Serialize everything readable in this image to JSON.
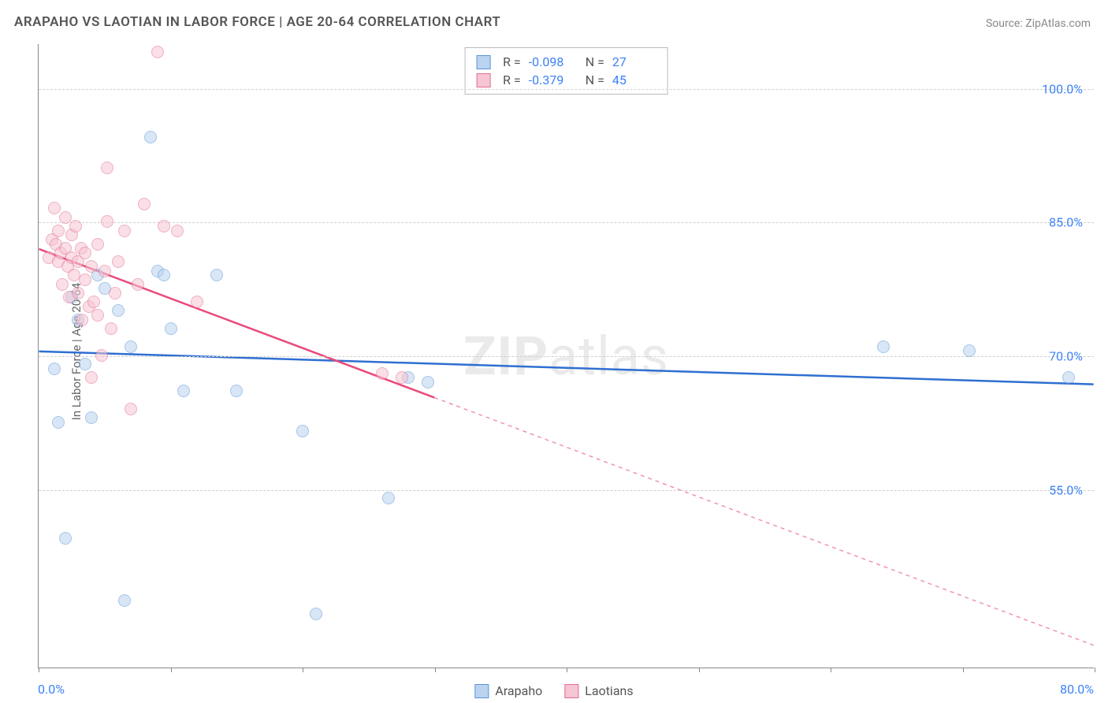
{
  "title": "ARAPAHO VS LAOTIAN IN LABOR FORCE | AGE 20-64 CORRELATION CHART",
  "source_label": "Source: ZipAtlas.com",
  "ylabel": "In Labor Force | Age 20-64",
  "watermark_bold": "ZIP",
  "watermark_rest": "atlas",
  "chart": {
    "type": "scatter",
    "xlim": [
      0,
      80
    ],
    "ylim": [
      35,
      105
    ],
    "x_tick_positions": [
      0,
      10,
      20,
      30,
      40,
      50,
      60,
      70,
      80
    ],
    "y_ticks": [
      {
        "v": 55,
        "label": "55.0%"
      },
      {
        "v": 70,
        "label": "70.0%"
      },
      {
        "v": 85,
        "label": "85.0%"
      },
      {
        "v": 100,
        "label": "100.0%"
      }
    ],
    "x_min_label": "0.0%",
    "x_max_label": "80.0%",
    "background_color": "#ffffff",
    "grid_color": "#d0d0d0",
    "marker_radius": 8,
    "marker_opacity": 0.55,
    "series": [
      {
        "name": "Arapaho",
        "color_fill": "#b9d3f0",
        "color_stroke": "#5e96d6",
        "R": "-0.098",
        "N": "27",
        "trend": {
          "x1": 0,
          "y1": 70.5,
          "x2": 80,
          "y2": 66.8,
          "solid_until_x": 80,
          "stroke": "#2f6fd1",
          "width": 2.5
        },
        "points": [
          [
            1.2,
            68.5
          ],
          [
            1.5,
            62.5
          ],
          [
            2.0,
            49.5
          ],
          [
            2.5,
            76.5
          ],
          [
            3.0,
            74.0
          ],
          [
            3.5,
            69.0
          ],
          [
            4.0,
            63.0
          ],
          [
            4.5,
            79.0
          ],
          [
            5.0,
            77.5
          ],
          [
            6.0,
            75.0
          ],
          [
            6.5,
            42.5
          ],
          [
            7.0,
            71.0
          ],
          [
            8.5,
            94.5
          ],
          [
            9.0,
            79.5
          ],
          [
            9.5,
            79.0
          ],
          [
            10.0,
            73.0
          ],
          [
            11.0,
            66.0
          ],
          [
            13.5,
            79.0
          ],
          [
            15.0,
            66.0
          ],
          [
            20.0,
            61.5
          ],
          [
            21.0,
            41.0
          ],
          [
            26.5,
            54.0
          ],
          [
            28.0,
            67.5
          ],
          [
            29.5,
            67.0
          ],
          [
            64.0,
            71.0
          ],
          [
            70.5,
            70.5
          ],
          [
            78.0,
            67.5
          ]
        ]
      },
      {
        "name": "Laotians",
        "color_fill": "#f6c5d3",
        "color_stroke": "#e26f93",
        "R": "-0.379",
        "N": "45",
        "trend": {
          "x1": 0,
          "y1": 82.0,
          "x2": 80,
          "y2": 37.5,
          "solid_until_x": 30,
          "stroke": "#e94b7a",
          "width": 2.5
        },
        "points": [
          [
            0.8,
            81.0
          ],
          [
            1.0,
            83.0
          ],
          [
            1.2,
            86.5
          ],
          [
            1.3,
            82.5
          ],
          [
            1.5,
            80.5
          ],
          [
            1.5,
            84.0
          ],
          [
            1.7,
            81.5
          ],
          [
            1.8,
            78.0
          ],
          [
            2.0,
            82.0
          ],
          [
            2.0,
            85.5
          ],
          [
            2.2,
            80.0
          ],
          [
            2.3,
            76.5
          ],
          [
            2.5,
            83.5
          ],
          [
            2.5,
            81.0
          ],
          [
            2.7,
            79.0
          ],
          [
            2.8,
            84.5
          ],
          [
            3.0,
            77.0
          ],
          [
            3.0,
            80.5
          ],
          [
            3.2,
            82.0
          ],
          [
            3.3,
            74.0
          ],
          [
            3.5,
            78.5
          ],
          [
            3.5,
            81.5
          ],
          [
            3.8,
            75.5
          ],
          [
            4.0,
            80.0
          ],
          [
            4.0,
            67.5
          ],
          [
            4.2,
            76.0
          ],
          [
            4.5,
            74.5
          ],
          [
            4.5,
            82.5
          ],
          [
            4.8,
            70.0
          ],
          [
            5.0,
            79.5
          ],
          [
            5.2,
            85.0
          ],
          [
            5.2,
            91.0
          ],
          [
            5.5,
            73.0
          ],
          [
            5.8,
            77.0
          ],
          [
            6.0,
            80.5
          ],
          [
            6.5,
            84.0
          ],
          [
            7.0,
            64.0
          ],
          [
            7.5,
            78.0
          ],
          [
            8.0,
            87.0
          ],
          [
            9.0,
            104.0
          ],
          [
            9.5,
            84.5
          ],
          [
            10.5,
            84.0
          ],
          [
            12.0,
            76.0
          ],
          [
            26.0,
            68.0
          ],
          [
            27.5,
            67.5
          ]
        ]
      }
    ]
  },
  "legend": {
    "items": [
      {
        "label": "Arapaho",
        "fill": "#b9d3f0",
        "stroke": "#5e96d6"
      },
      {
        "label": "Laotians",
        "fill": "#f6c5d3",
        "stroke": "#e26f93"
      }
    ]
  }
}
